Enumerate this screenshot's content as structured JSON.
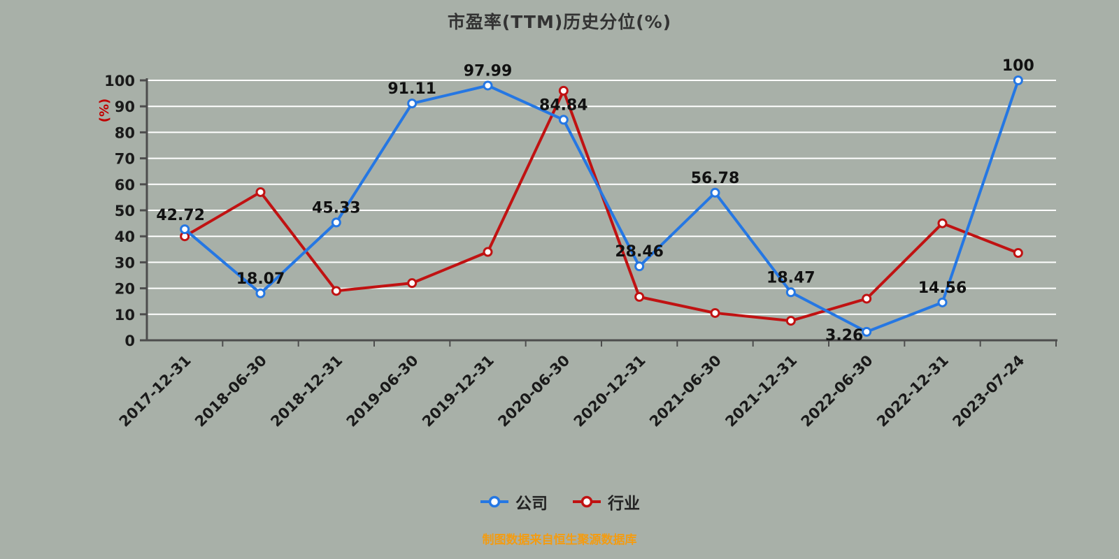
{
  "title": "市盈率(TTM)历史分位(%)",
  "y_axis_label": "(%)",
  "footer": "制图数据来自恒生聚源数据库",
  "colors": {
    "background": "#a8b0a8",
    "gridline": "#ffffff",
    "axis": "#4d4d4d",
    "company_blue": "#2577e3",
    "industry_red": "#c01212",
    "unit_label_red": "#c00000",
    "footer_orange": "#f39c12"
  },
  "legend": [
    {
      "id": "company",
      "label": "公司",
      "color": "#2577e3"
    },
    {
      "id": "industry",
      "label": "行业",
      "color": "#c01212"
    }
  ],
  "chart_data": {
    "type": "line",
    "title": "市盈率(TTM)历史分位(%)",
    "ylabel": "(%)",
    "ylim": [
      0,
      100
    ],
    "ytick_step": 10,
    "grid": true,
    "legend_position": "bottom",
    "categories": [
      "2017-12-31",
      "2018-06-30",
      "2018-12-31",
      "2019-06-30",
      "2019-12-31",
      "2020-06-30",
      "2020-12-31",
      "2021-06-30",
      "2021-12-31",
      "2022-06-30",
      "2022-12-31",
      "2023-07-24"
    ],
    "series": [
      {
        "id": "company",
        "name": "公司",
        "color": "#2577e3",
        "values": [
          42.72,
          18.07,
          45.33,
          91.11,
          97.99,
          84.84,
          28.46,
          56.78,
          18.47,
          3.26,
          14.56,
          100
        ],
        "labels": [
          "42.72",
          "18.07",
          "45.33",
          "91.11",
          "97.99",
          "84.84",
          "28.46",
          "56.78",
          "18.47",
          "3.26",
          "14.56",
          "100"
        ]
      },
      {
        "id": "industry",
        "name": "行业",
        "color": "#c01212",
        "values": [
          40,
          57,
          19,
          22,
          34,
          96,
          16.7,
          10.5,
          7.5,
          16,
          45,
          33.6
        ],
        "labels": []
      }
    ]
  }
}
